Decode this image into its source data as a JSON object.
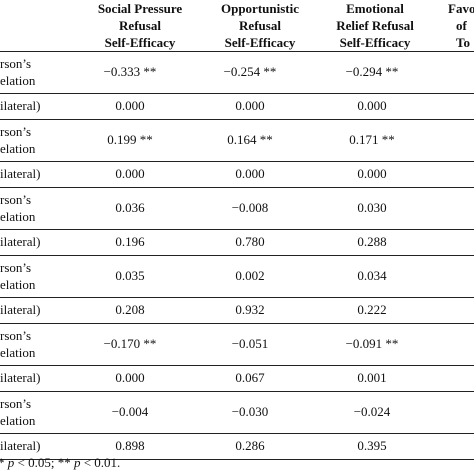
{
  "headers": [
    {
      "lines": [
        "Social Pressure",
        "Refusal",
        "Self-Efficacy"
      ]
    },
    {
      "lines": [
        "Opportunistic",
        "Refusal",
        "Self-Efficacy"
      ]
    },
    {
      "lines": [
        "Emotional",
        "Relief Refusal",
        "Self-Efficacy"
      ]
    },
    {
      "lines": [
        "Favo",
        "of",
        "To"
      ]
    }
  ],
  "row_labels": {
    "corr_line1": "rson’s",
    "corr_line2": "elation",
    "sig": "ilateral)"
  },
  "rows": [
    {
      "type": "corr",
      "values": [
        "−0.333 **",
        "−0.254 **",
        "−0.294 **"
      ]
    },
    {
      "type": "sig",
      "values": [
        "0.000",
        "0.000",
        "0.000"
      ]
    },
    {
      "type": "corr",
      "values": [
        "0.199 **",
        "0.164 **",
        "0.171 **"
      ]
    },
    {
      "type": "sig",
      "values": [
        "0.000",
        "0.000",
        "0.000"
      ]
    },
    {
      "type": "corr",
      "values": [
        "0.036",
        "−0.008",
        "0.030"
      ]
    },
    {
      "type": "sig",
      "values": [
        "0.196",
        "0.780",
        "0.288"
      ]
    },
    {
      "type": "corr",
      "values": [
        "0.035",
        "0.002",
        "0.034"
      ]
    },
    {
      "type": "sig",
      "values": [
        "0.208",
        "0.932",
        "0.222"
      ]
    },
    {
      "type": "corr",
      "values": [
        "−0.170 **",
        "−0.051",
        "−0.091 **"
      ]
    },
    {
      "type": "sig",
      "values": [
        "0.000",
        "0.067",
        "0.001"
      ]
    },
    {
      "type": "corr",
      "values": [
        "−0.004",
        "−0.030",
        "−0.024"
      ]
    },
    {
      "type": "sig",
      "values": [
        "0.898",
        "0.286",
        "0.395"
      ]
    }
  ],
  "footnote": {
    "star1": "*",
    "p1": "p",
    "text1": " < 0.05; ** ",
    "p2": "p",
    "text2": " < 0.01."
  }
}
